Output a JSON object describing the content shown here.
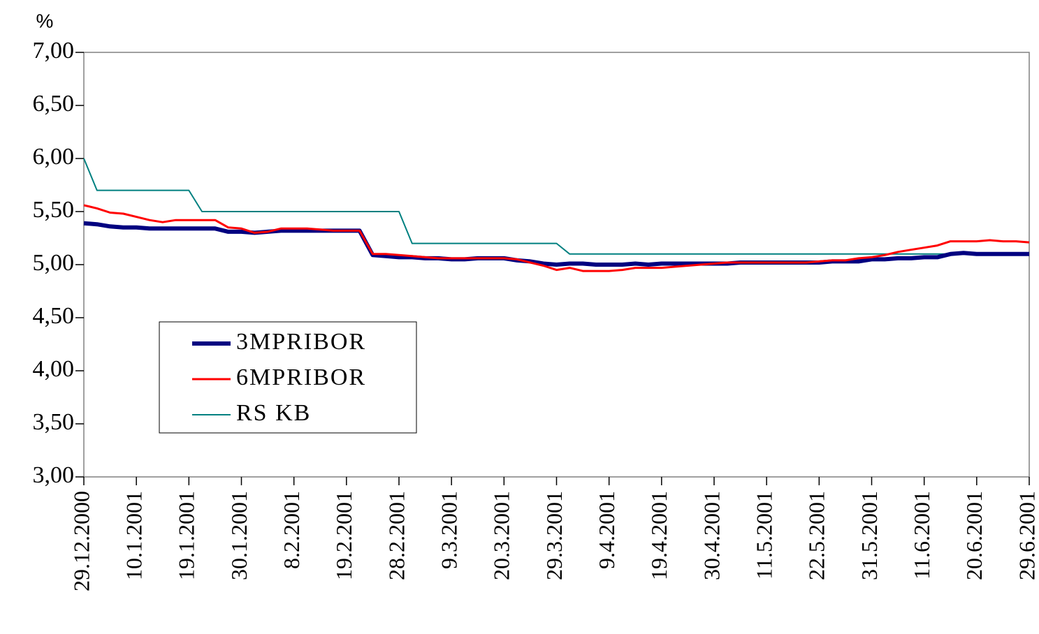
{
  "chart_data": {
    "type": "line",
    "ylabel": "%",
    "categories": [
      "29.12.2000",
      null,
      null,
      null,
      "10.1.2001",
      null,
      null,
      null,
      "19.1.2001",
      null,
      null,
      null,
      "30.1.2001",
      null,
      null,
      null,
      "8.2.2001",
      null,
      null,
      null,
      "19.2.2001",
      null,
      null,
      null,
      "28.2.2001",
      null,
      null,
      null,
      "9.3.2001",
      null,
      null,
      null,
      "20.3.2001",
      null,
      null,
      null,
      "29.3.2001",
      null,
      null,
      null,
      "9.4.2001",
      null,
      null,
      null,
      "19.4.2001",
      null,
      null,
      null,
      "30.4.2001",
      null,
      null,
      null,
      "11.5.2001",
      null,
      null,
      null,
      "22.5.2001",
      null,
      null,
      null,
      "31.5.2001",
      null,
      null,
      null,
      "11.6.2001",
      null,
      null,
      null,
      "20.6.2001",
      null,
      null,
      null,
      "29.6.2001"
    ],
    "series": [
      {
        "name": "3MPRIBOR",
        "color": "#000080",
        "values": [
          5.39,
          5.38,
          5.36,
          5.35,
          5.35,
          5.34,
          5.34,
          5.34,
          5.34,
          5.34,
          5.34,
          5.31,
          5.31,
          5.3,
          5.31,
          5.32,
          5.32,
          5.32,
          5.32,
          5.32,
          5.32,
          5.32,
          5.09,
          5.08,
          5.07,
          5.07,
          5.06,
          5.06,
          5.05,
          5.05,
          5.06,
          5.06,
          5.06,
          5.04,
          5.03,
          5.01,
          5.0,
          5.01,
          5.01,
          5.0,
          5.0,
          5.0,
          5.01,
          5.0,
          5.01,
          5.01,
          5.01,
          5.01,
          5.01,
          5.01,
          5.02,
          5.02,
          5.02,
          5.02,
          5.02,
          5.02,
          5.02,
          5.03,
          5.03,
          5.03,
          5.05,
          5.05,
          5.06,
          5.06,
          5.07,
          5.07,
          5.1,
          5.11,
          5.1,
          5.1,
          5.1,
          5.1,
          5.1
        ]
      },
      {
        "name": "6MPRIBOR",
        "color": "#ff0000",
        "values": [
          5.56,
          5.53,
          5.49,
          5.48,
          5.45,
          5.42,
          5.4,
          5.42,
          5.42,
          5.42,
          5.42,
          5.35,
          5.34,
          5.3,
          5.31,
          5.34,
          5.34,
          5.34,
          5.33,
          5.32,
          5.32,
          5.32,
          5.1,
          5.1,
          5.09,
          5.08,
          5.07,
          5.06,
          5.06,
          5.06,
          5.06,
          5.06,
          5.06,
          5.05,
          5.02,
          4.99,
          4.95,
          4.97,
          4.94,
          4.94,
          4.94,
          4.95,
          4.97,
          4.97,
          4.97,
          4.98,
          4.99,
          5.0,
          5.01,
          5.02,
          5.02,
          5.02,
          5.02,
          5.02,
          5.02,
          5.02,
          5.03,
          5.04,
          5.04,
          5.06,
          5.07,
          5.09,
          5.12,
          5.14,
          5.16,
          5.18,
          5.22,
          5.22,
          5.22,
          5.23,
          5.22,
          5.22,
          5.21
        ]
      },
      {
        "name": "RS KB",
        "color": "#008080",
        "values": [
          6.0,
          5.7,
          5.7,
          5.7,
          5.7,
          5.7,
          5.7,
          5.7,
          5.7,
          5.5,
          5.5,
          5.5,
          5.5,
          5.5,
          5.5,
          5.5,
          5.5,
          5.5,
          5.5,
          5.5,
          5.5,
          5.5,
          5.5,
          5.5,
          5.5,
          5.2,
          5.2,
          5.2,
          5.2,
          5.2,
          5.2,
          5.2,
          5.2,
          5.2,
          5.2,
          5.2,
          5.2,
          5.1,
          5.1,
          5.1,
          5.1,
          5.1,
          5.1,
          5.1,
          5.1,
          5.1,
          5.1,
          5.1,
          5.1,
          5.1,
          5.1,
          5.1,
          5.1,
          5.1,
          5.1,
          5.1,
          5.1,
          5.1,
          5.1,
          5.1,
          5.1,
          5.1,
          5.1,
          5.1,
          5.1,
          5.1,
          5.1,
          5.1,
          5.1,
          5.1,
          5.1,
          5.1,
          5.1
        ]
      }
    ],
    "ylim": [
      3,
      7
    ],
    "yticks": [
      {
        "value": 3,
        "label": "3,00"
      },
      {
        "value": 3.5,
        "label": "3,50"
      },
      {
        "value": 4,
        "label": "4,00"
      },
      {
        "value": 4.5,
        "label": "4,50"
      },
      {
        "value": 5,
        "label": "5,00"
      },
      {
        "value": 5.5,
        "label": "5,50"
      },
      {
        "value": 6,
        "label": "6,00"
      },
      {
        "value": 6.5,
        "label": "6,50"
      },
      {
        "value": 7,
        "label": "7,00"
      }
    ],
    "grid": false
  }
}
